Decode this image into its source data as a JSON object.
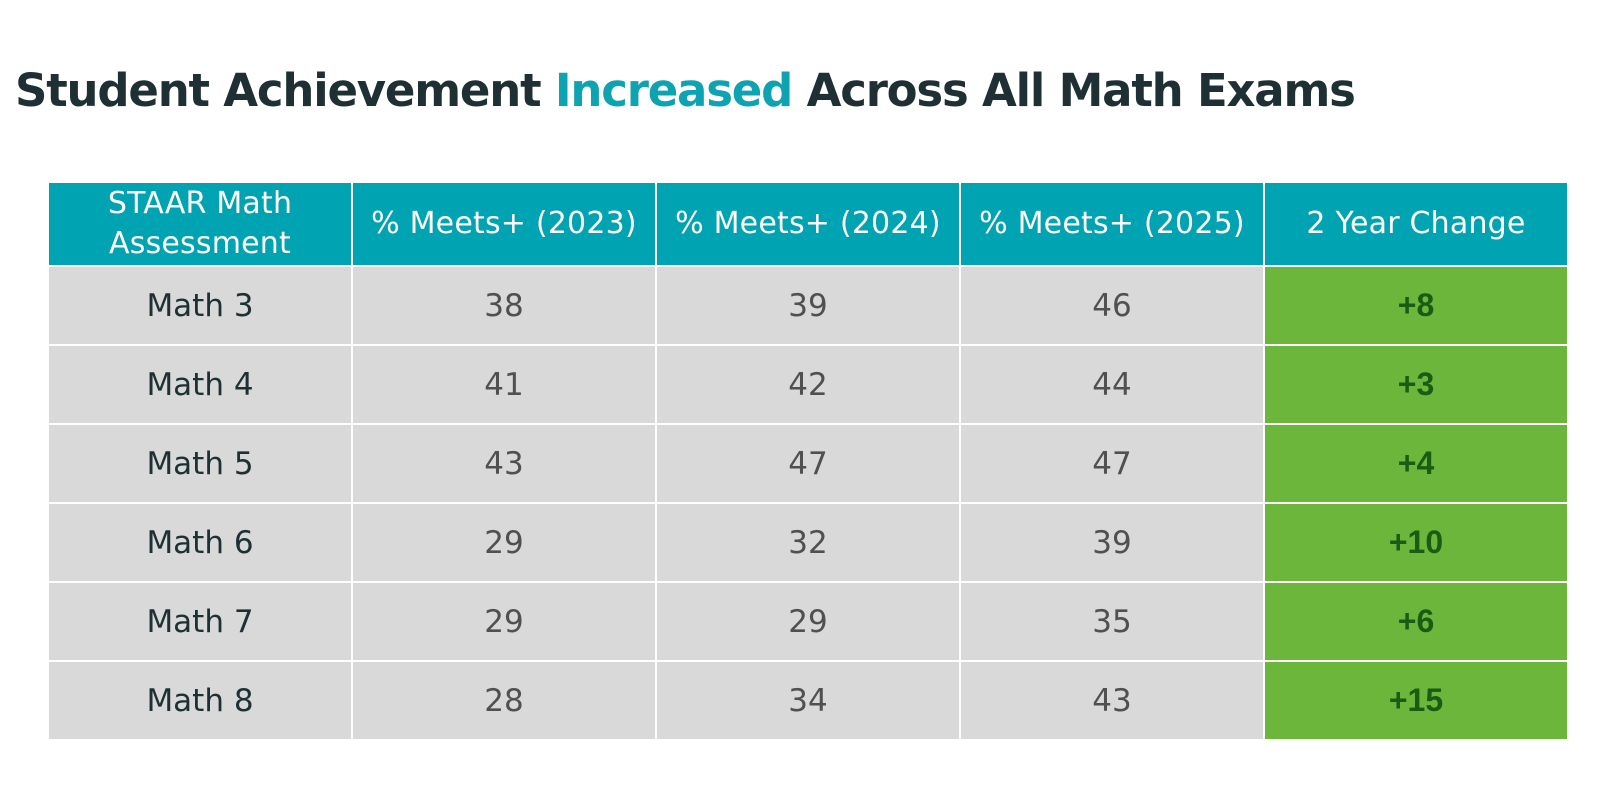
{
  "title": {
    "before": "Student Achievement ",
    "highlight": "Increased",
    "after": " Across All Math Exams"
  },
  "colors": {
    "title_text": "#1e3034",
    "title_accent": "#0ea3b1",
    "header_bg": "#00a3b1",
    "row_bg": "#d9d9d9",
    "change_bg": "#6db63c",
    "change_text": "#1a5c12"
  },
  "table": {
    "headers": {
      "assessment_line1": "STAAR Math",
      "assessment_line2": "Assessment",
      "y2023": "% Meets+ (2023)",
      "y2024": "% Meets+ (2024)",
      "y2025": "% Meets+ (2025)",
      "change": "2 Year Change"
    },
    "rows": [
      {
        "assessment": "Math 3",
        "y2023": "38",
        "y2024": "39",
        "y2025": "46",
        "change": "+8"
      },
      {
        "assessment": "Math 4",
        "y2023": "41",
        "y2024": "42",
        "y2025": "44",
        "change": "+3"
      },
      {
        "assessment": "Math 5",
        "y2023": "43",
        "y2024": "47",
        "y2025": "47",
        "change": "+4"
      },
      {
        "assessment": "Math 6",
        "y2023": "29",
        "y2024": "32",
        "y2025": "39",
        "change": "+10"
      },
      {
        "assessment": "Math 7",
        "y2023": "29",
        "y2024": "29",
        "y2025": "35",
        "change": "+6"
      },
      {
        "assessment": "Math 8",
        "y2023": "28",
        "y2024": "34",
        "y2025": "43",
        "change": "+15"
      }
    ]
  }
}
